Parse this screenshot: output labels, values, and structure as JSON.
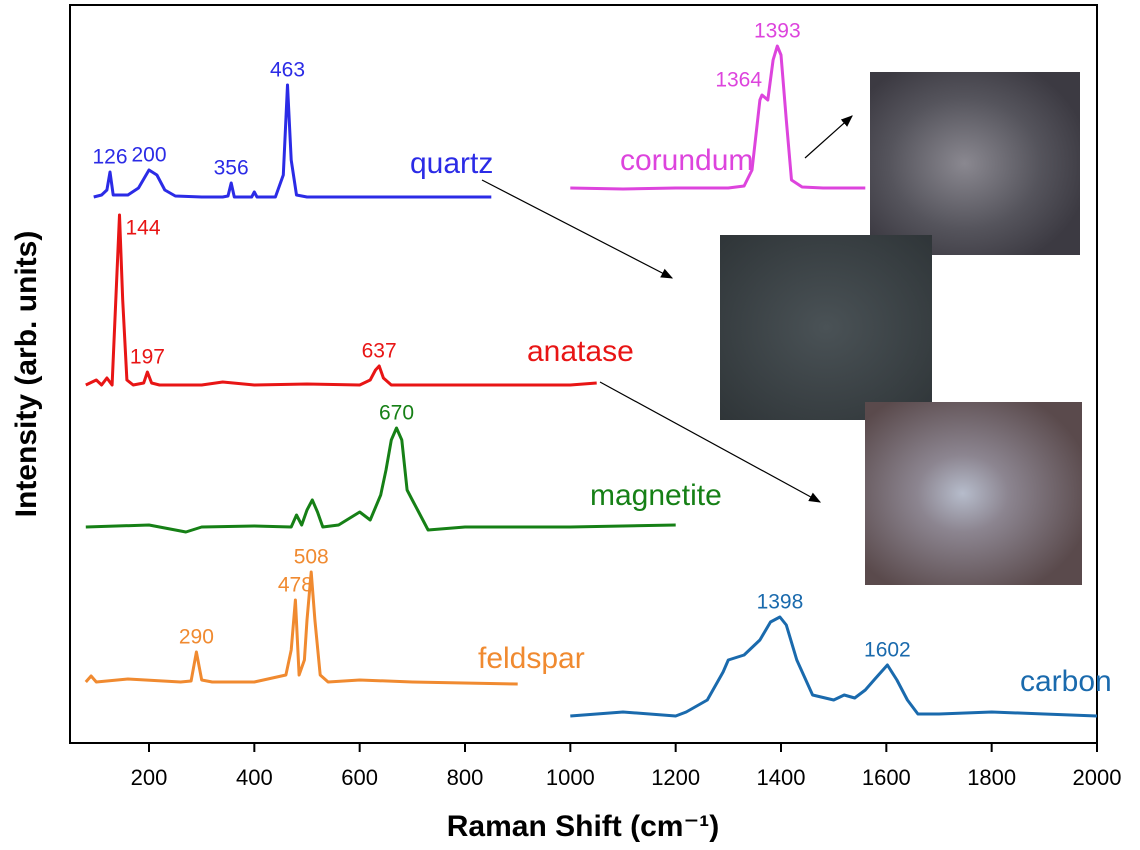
{
  "chart_data": {
    "type": "line",
    "x_label": "Raman Shift (cm⁻¹)",
    "y_label": "Intensity (arb. units)",
    "xlim": [
      50,
      2000
    ],
    "xticks": [
      200,
      400,
      600,
      800,
      1000,
      1200,
      1400,
      1600,
      1800,
      2000
    ],
    "ylim": [
      0,
      738
    ],
    "series": [
      {
        "name": "quartz",
        "color": "#2b2be6",
        "peaks": [
          126,
          200,
          356,
          463
        ],
        "x": [
          95,
          110,
          120,
          126,
          132,
          160,
          180,
          200,
          215,
          230,
          250,
          300,
          340,
          350,
          356,
          362,
          395,
          400,
          405,
          440,
          455,
          463,
          470,
          480,
          500,
          600,
          700,
          850
        ],
        "values": [
          546,
          548,
          553,
          571,
          548,
          548,
          555,
          573,
          568,
          553,
          547,
          546,
          546,
          547,
          560,
          546,
          546,
          551,
          546,
          546,
          568,
          658,
          583,
          548,
          546,
          546,
          546,
          546
        ]
      },
      {
        "name": "corundum",
        "color": "#dd44dd",
        "peaks": [
          1364,
          1393
        ],
        "x": [
          1000,
          1100,
          1200,
          1300,
          1330,
          1345,
          1360,
          1364,
          1375,
          1385,
          1393,
          1400,
          1410,
          1420,
          1440,
          1480,
          1560
        ],
        "values": [
          555,
          554,
          555,
          555,
          557,
          573,
          643,
          648,
          643,
          683,
          697,
          688,
          623,
          563,
          556,
          555,
          555
        ]
      },
      {
        "name": "anatase",
        "color": "#e81515",
        "peaks": [
          144,
          197,
          637
        ],
        "x": [
          80,
          100,
          110,
          120,
          130,
          137,
          144,
          150,
          158,
          170,
          190,
          197,
          205,
          220,
          300,
          340,
          400,
          500,
          600,
          620,
          630,
          637,
          645,
          660,
          700,
          800,
          900,
          1000,
          1050
        ],
        "values": [
          358,
          363,
          358,
          365,
          358,
          443,
          528,
          443,
          363,
          358,
          360,
          371,
          360,
          358,
          358,
          361,
          358,
          359,
          358,
          363,
          373,
          377,
          365,
          358,
          358,
          358,
          358,
          358,
          360
        ]
      },
      {
        "name": "magnetite",
        "color": "#168016",
        "peaks": [
          670
        ],
        "x": [
          80,
          200,
          270,
          300,
          400,
          470,
          480,
          490,
          500,
          510,
          520,
          530,
          560,
          600,
          620,
          640,
          650,
          660,
          670,
          680,
          690,
          700,
          710,
          730,
          800,
          1000,
          1200
        ],
        "values": [
          216,
          218,
          211,
          216,
          217,
          216,
          228,
          218,
          233,
          243,
          231,
          216,
          218,
          231,
          223,
          248,
          273,
          303,
          315,
          303,
          253,
          243,
          233,
          213,
          216,
          216,
          218
        ]
      },
      {
        "name": "feldspar",
        "color": "#f08a30",
        "peaks": [
          290,
          478,
          508
        ],
        "x": [
          80,
          90,
          100,
          160,
          260,
          280,
          290,
          300,
          320,
          400,
          460,
          470,
          478,
          485,
          495,
          500,
          508,
          515,
          525,
          540,
          600,
          700,
          900
        ],
        "values": [
          61,
          67,
          61,
          64,
          61,
          62,
          91,
          63,
          61,
          61,
          68,
          93,
          143,
          68,
          83,
          123,
          171,
          123,
          68,
          61,
          63,
          61,
          59
        ]
      },
      {
        "name": "carbon",
        "color": "#1a6aad",
        "peaks": [
          1398,
          1602
        ],
        "x": [
          1000,
          1100,
          1200,
          1220,
          1260,
          1290,
          1300,
          1330,
          1360,
          1380,
          1398,
          1410,
          1430,
          1460,
          1500,
          1520,
          1540,
          1560,
          1580,
          1602,
          1620,
          1640,
          1660,
          1700,
          1800,
          1900,
          2000
        ],
        "values": [
          27,
          31,
          27,
          31,
          43,
          71,
          83,
          88,
          103,
          121,
          126,
          118,
          83,
          48,
          43,
          48,
          45,
          53,
          65,
          78,
          63,
          43,
          29,
          29,
          31,
          29,
          27
        ]
      }
    ]
  }
}
